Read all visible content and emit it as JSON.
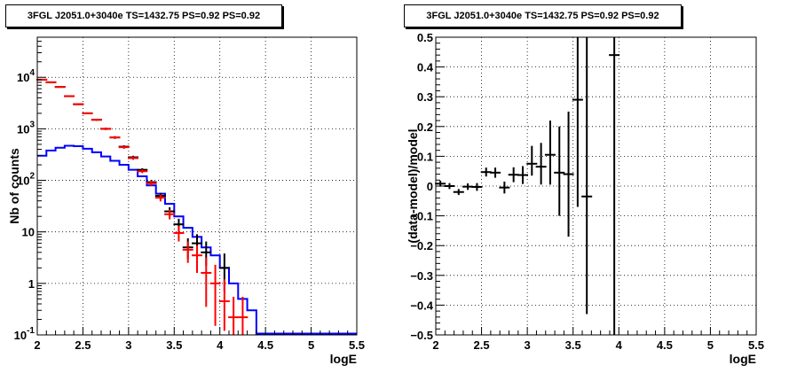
{
  "chart_data": [
    {
      "type": "step-histogram-with-errorbars",
      "title": "3FGL J2051.0+3040e TS=1432.75 PS=0.92 PS=0.92",
      "xlabel": "logE",
      "ylabel": "Nb of counts",
      "xlim": [
        2,
        5.5
      ],
      "ylim": [
        0.1,
        60000
      ],
      "yscale": "log",
      "grid": true,
      "x_ticks": [
        "2",
        "2.5",
        "3",
        "3.5",
        "4",
        "4.5",
        "5",
        "5.5"
      ],
      "y_ticks": [
        {
          "value": 0.1,
          "base": "10",
          "exp": "-1"
        },
        {
          "value": 1,
          "base": "1",
          "exp": ""
        },
        {
          "value": 10,
          "base": "10",
          "exp": ""
        },
        {
          "value": 100,
          "base": "10",
          "exp": "2"
        },
        {
          "value": 1000,
          "base": "10",
          "exp": "3"
        },
        {
          "value": 10000,
          "base": "10",
          "exp": "4"
        }
      ],
      "series": [
        {
          "color": "#0000ff",
          "style": "step",
          "x_edges": [
            2.0,
            2.1,
            2.2,
            2.3,
            2.4,
            2.5,
            2.6,
            2.7,
            2.8,
            2.9,
            3.0,
            3.1,
            3.2,
            3.3,
            3.4,
            3.5,
            3.6,
            3.7,
            3.8,
            3.9,
            4.0,
            4.1,
            4.2,
            4.3,
            4.4,
            4.5,
            4.6,
            4.7,
            4.8,
            4.9,
            5.0,
            5.1,
            5.2,
            5.3,
            5.4,
            5.5
          ],
          "values": [
            300,
            380,
            430,
            470,
            460,
            410,
            350,
            290,
            240,
            200,
            160,
            120,
            80,
            55,
            35,
            20,
            12,
            8,
            5,
            3.5,
            2,
            1,
            0.5,
            0.3,
            0.1,
            0.1,
            0.1,
            0.1,
            0.1,
            0.1,
            0.1,
            0.1,
            0.1,
            0.1,
            0.1
          ]
        },
        {
          "color": "#000000",
          "style": "errorbar",
          "points": [
            {
              "x": 2.05,
              "y": 9000,
              "lo": 8800,
              "hi": 9200
            },
            {
              "x": 2.15,
              "y": 8000,
              "lo": 7800,
              "hi": 8200
            },
            {
              "x": 2.25,
              "y": 6500,
              "lo": 6300,
              "hi": 6700
            },
            {
              "x": 2.35,
              "y": 4300,
              "lo": 4150,
              "hi": 4450
            },
            {
              "x": 2.45,
              "y": 3000,
              "lo": 2900,
              "hi": 3100
            },
            {
              "x": 2.55,
              "y": 2000,
              "lo": 1920,
              "hi": 2080
            },
            {
              "x": 2.65,
              "y": 1500,
              "lo": 1430,
              "hi": 1570
            },
            {
              "x": 2.75,
              "y": 1000,
              "lo": 950,
              "hi": 1050
            },
            {
              "x": 2.85,
              "y": 680,
              "lo": 640,
              "hi": 720
            },
            {
              "x": 2.95,
              "y": 450,
              "lo": 420,
              "hi": 480
            },
            {
              "x": 3.05,
              "y": 280,
              "lo": 260,
              "hi": 300
            },
            {
              "x": 3.15,
              "y": 160,
              "lo": 148,
              "hi": 172
            },
            {
              "x": 3.25,
              "y": 92,
              "lo": 82,
              "hi": 102
            },
            {
              "x": 3.35,
              "y": 50,
              "lo": 43,
              "hi": 57
            },
            {
              "x": 3.45,
              "y": 25,
              "lo": 20,
              "hi": 30
            },
            {
              "x": 3.55,
              "y": 14,
              "lo": 10.5,
              "hi": 18
            },
            {
              "x": 3.65,
              "y": 5,
              "lo": 3,
              "hi": 7.5
            },
            {
              "x": 3.75,
              "y": 6,
              "lo": 4,
              "hi": 9
            },
            {
              "x": 3.85,
              "y": 4,
              "lo": 2.2,
              "hi": 6.5
            },
            {
              "x": 4.05,
              "y": 2,
              "lo": 0.7,
              "hi": 3.8
            }
          ]
        },
        {
          "color": "#ff0000",
          "style": "errorbar",
          "points": [
            {
              "x": 2.05,
              "y": 9000,
              "lo": 8800,
              "hi": 9200
            },
            {
              "x": 2.15,
              "y": 8000,
              "lo": 7800,
              "hi": 8200
            },
            {
              "x": 2.25,
              "y": 6500,
              "lo": 6300,
              "hi": 6700
            },
            {
              "x": 2.35,
              "y": 4300,
              "lo": 4150,
              "hi": 4450
            },
            {
              "x": 2.45,
              "y": 3000,
              "lo": 2900,
              "hi": 3100
            },
            {
              "x": 2.55,
              "y": 2000,
              "lo": 1920,
              "hi": 2080
            },
            {
              "x": 2.65,
              "y": 1500,
              "lo": 1430,
              "hi": 1570
            },
            {
              "x": 2.75,
              "y": 1000,
              "lo": 950,
              "hi": 1050
            },
            {
              "x": 2.85,
              "y": 680,
              "lo": 640,
              "hi": 720
            },
            {
              "x": 2.95,
              "y": 440,
              "lo": 410,
              "hi": 470
            },
            {
              "x": 3.05,
              "y": 270,
              "lo": 250,
              "hi": 290
            },
            {
              "x": 3.15,
              "y": 150,
              "lo": 138,
              "hi": 162
            },
            {
              "x": 3.25,
              "y": 88,
              "lo": 78,
              "hi": 98
            },
            {
              "x": 3.35,
              "y": 46,
              "lo": 39,
              "hi": 53
            },
            {
              "x": 3.45,
              "y": 22,
              "lo": 17.5,
              "hi": 27
            },
            {
              "x": 3.55,
              "y": 9.5,
              "lo": 6.5,
              "hi": 13
            },
            {
              "x": 3.65,
              "y": 4.5,
              "lo": 2.5,
              "hi": 6.5
            },
            {
              "x": 3.75,
              "y": 3.5,
              "lo": 1.6,
              "hi": 5.5
            },
            {
              "x": 3.85,
              "y": 1.6,
              "lo": 0.35,
              "hi": 3.2
            },
            {
              "x": 3.95,
              "y": 1.0,
              "lo": 0.15,
              "hi": 2.3
            },
            {
              "x": 4.05,
              "y": 0.45,
              "lo": 0.12,
              "hi": 1.2
            },
            {
              "x": 4.15,
              "y": 0.22,
              "lo": 0.1,
              "hi": 0.55
            },
            {
              "x": 4.25,
              "y": 0.22,
              "lo": 0.1,
              "hi": 0.55
            }
          ]
        }
      ]
    },
    {
      "type": "scatter-with-errorbars",
      "title": "3FGL J2051.0+3040e TS=1432.75 PS=0.92 PS=0.92",
      "xlabel": "logE",
      "ylabel": "(data-model)/model",
      "xlim": [
        2,
        5.5
      ],
      "ylim": [
        -0.5,
        0.5
      ],
      "grid": true,
      "x_ticks": [
        "2",
        "2.5",
        "3",
        "3.5",
        "4",
        "4.5",
        "5",
        "5.5"
      ],
      "y_ticks": [
        "-0.5",
        "-0.4",
        "-0.3",
        "-0.2",
        "-0.1",
        "0",
        "0.1",
        "0.2",
        "0.3",
        "0.4",
        "0.5"
      ],
      "series": [
        {
          "color": "#000000",
          "style": "errorbar",
          "points": [
            {
              "x": 2.05,
              "y": 0.008,
              "lo": -0.002,
              "hi": 0.018
            },
            {
              "x": 2.15,
              "y": 0.0,
              "lo": -0.01,
              "hi": 0.01
            },
            {
              "x": 2.25,
              "y": -0.02,
              "lo": -0.03,
              "hi": -0.01
            },
            {
              "x": 2.35,
              "y": -0.002,
              "lo": -0.013,
              "hi": 0.009
            },
            {
              "x": 2.45,
              "y": -0.003,
              "lo": -0.016,
              "hi": 0.01
            },
            {
              "x": 2.55,
              "y": 0.047,
              "lo": 0.032,
              "hi": 0.062
            },
            {
              "x": 2.65,
              "y": 0.045,
              "lo": 0.028,
              "hi": 0.062
            },
            {
              "x": 2.75,
              "y": -0.005,
              "lo": -0.025,
              "hi": 0.015
            },
            {
              "x": 2.85,
              "y": 0.038,
              "lo": 0.013,
              "hi": 0.063
            },
            {
              "x": 2.95,
              "y": 0.037,
              "lo": 0.007,
              "hi": 0.067
            },
            {
              "x": 3.05,
              "y": 0.075,
              "lo": 0.035,
              "hi": 0.135
            },
            {
              "x": 3.15,
              "y": 0.065,
              "lo": 0.005,
              "hi": 0.145
            },
            {
              "x": 3.25,
              "y": 0.105,
              "lo": 0.005,
              "hi": 0.22
            },
            {
              "x": 3.35,
              "y": 0.045,
              "lo": -0.1,
              "hi": 0.2
            },
            {
              "x": 3.45,
              "y": 0.04,
              "lo": -0.17,
              "hi": 0.25
            },
            {
              "x": 3.55,
              "y": 0.29,
              "lo": -0.07,
              "hi": 0.5
            },
            {
              "x": 3.65,
              "y": -0.035,
              "lo": -0.43,
              "hi": 0.5
            },
            {
              "x": 3.95,
              "y": 0.44,
              "lo": -0.5,
              "hi": 0.5
            }
          ]
        }
      ]
    }
  ]
}
